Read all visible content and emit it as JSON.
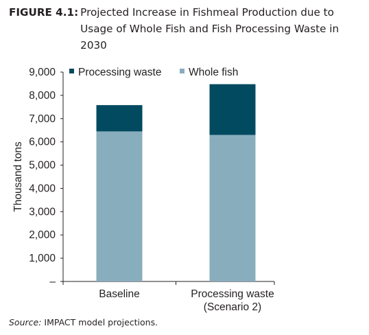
{
  "figure": {
    "label": "FIGURE 4.1:",
    "title": "Projected Increase in Fishmeal Production due to Usage of Whole Fish and Fish Processing Waste in 2030"
  },
  "source": {
    "label": "Source:",
    "text": " IMPACT model projections."
  },
  "colors": {
    "processing_waste": "#024a60",
    "whole_fish": "#88adbd",
    "axis": "#231f20"
  },
  "chart_data": {
    "type": "bar",
    "stacked": true,
    "categories": [
      [
        "Baseline"
      ],
      [
        "Processing waste",
        "(Scenario 2)"
      ]
    ],
    "series": [
      {
        "name": "Whole fish",
        "values": [
          6450,
          6300
        ]
      },
      {
        "name": "Processing waste",
        "values": [
          1130,
          2180
        ]
      }
    ],
    "legend": [
      "Processing waste",
      "Whole fish"
    ],
    "legend_position": "top",
    "ylabel": "Thousand tons",
    "xlabel": "",
    "ylim": [
      0,
      9000
    ],
    "yticks": [
      0,
      1000,
      2000,
      3000,
      4000,
      5000,
      6000,
      7000,
      8000,
      9000
    ],
    "ytick_labels": [
      "–",
      "1,000",
      "2,000",
      "3,000",
      "4,000",
      "5,000",
      "6,000",
      "7,000",
      "8,000",
      "9,000"
    ],
    "grid": false
  }
}
